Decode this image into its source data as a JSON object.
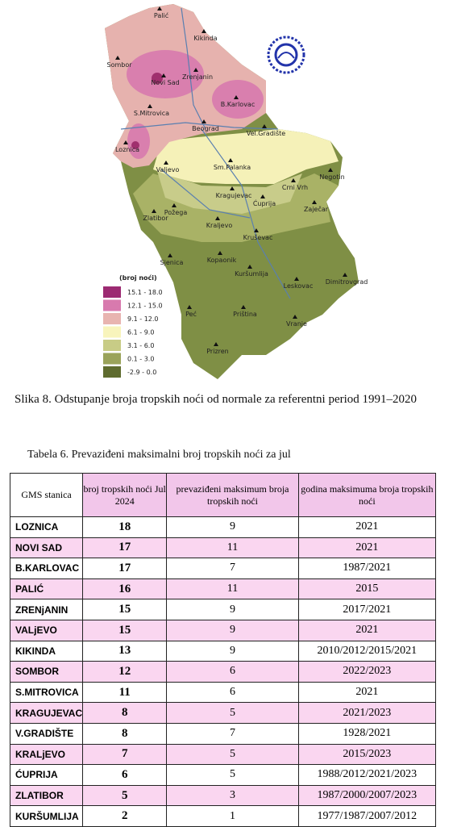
{
  "figure": {
    "map_labels": [
      "Palić",
      "Sombor",
      "Kikinda",
      "Novi Sad",
      "Zrenjanin",
      "B.Karlovac",
      "S.Mitrovica",
      "Beograd",
      "Vel.Gradište",
      "Loznica",
      "Valjevo",
      "Sm.Palanka",
      "Negotin",
      "Crni Vrh",
      "Kragujevac",
      "Ćuprija",
      "Zaječar",
      "Zlatibor",
      "Požega",
      "Kraljevo",
      "Kruševac",
      "Sjenica",
      "Kopaonik",
      "Kuršumlija",
      "Leskovac",
      "Dimitrovgrad",
      "Peć",
      "Priština",
      "Vranje",
      "Prizren"
    ],
    "legend": {
      "title": "(broj noći)",
      "items": [
        "15.1 - 18.0",
        "12.1 - 15.0",
        "9.1 - 12.0",
        "6.1 - 9.0",
        "3.1 - 6.0",
        "0.1 - 3.0",
        "-2.9 - 0.0"
      ]
    },
    "caption": "Slika 8. Odstupanje broja tropskih noći od normale za referentni period 1991–2020"
  },
  "table": {
    "caption": "Tabela 6. Prevaziđeni maksimalni broj tropskih noći za jul",
    "header": [
      "GMS stanica",
      "broj tropskih noći Jul 2024",
      "prevaziđeni maksimum broja tropskih noći",
      "godina maksimuma broja tropskih noći"
    ],
    "rows": [
      [
        "LOZNICA",
        18,
        9,
        "2021"
      ],
      [
        "NOVI SAD",
        17,
        11,
        "2021"
      ],
      [
        "B.KARLOVAC",
        17,
        7,
        "1987/2021"
      ],
      [
        "PALIĆ",
        16,
        11,
        "2015"
      ],
      [
        "ZRENjANIN",
        15,
        9,
        "2017/2021"
      ],
      [
        "VALjEVO",
        15,
        9,
        "2021"
      ],
      [
        "KIKINDA",
        13,
        9,
        "2010/2012/2015/2021"
      ],
      [
        "SOMBOR",
        12,
        6,
        "2022/2023"
      ],
      [
        "S.MITROVICA",
        11,
        6,
        "2021"
      ],
      [
        "KRAGUJEVAC",
        8,
        5,
        "2021/2023"
      ],
      [
        "V.GRADIŠTE",
        8,
        7,
        "1928/2021"
      ],
      [
        "KRALjEVO",
        7,
        5,
        "2015/2023"
      ],
      [
        "ĆUPRIJA",
        6,
        5,
        "1988/2012/2021/2023"
      ],
      [
        "ZLATIBOR",
        5,
        3,
        "1987/2000/2007/2023"
      ],
      [
        "KURŠUMLIJA",
        2,
        1,
        "1977/1987/2007/2012"
      ]
    ]
  }
}
